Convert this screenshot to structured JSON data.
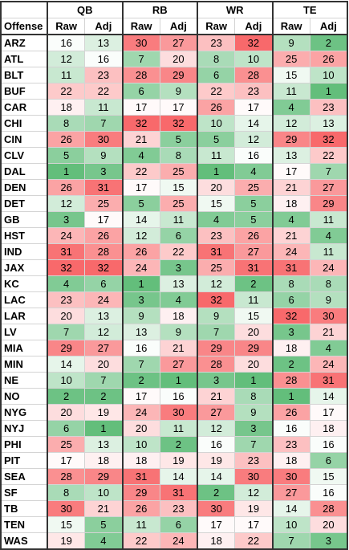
{
  "table": {
    "corner": "Offense",
    "groups": [
      {
        "name": "QB",
        "columns": [
          "Raw",
          "Adj"
        ]
      },
      {
        "name": "RB",
        "columns": [
          "Raw",
          "Adj"
        ]
      },
      {
        "name": "WR",
        "columns": [
          "Raw",
          "Adj"
        ]
      },
      {
        "name": "TE",
        "columns": [
          "Raw",
          "Adj"
        ]
      }
    ],
    "color_scale": {
      "low": "#63be7b",
      "mid": "#ffffff",
      "high": "#f8696b"
    },
    "rows": [
      {
        "team": "ARZ",
        "values": [
          16,
          13,
          30,
          27,
          23,
          32,
          9,
          2
        ]
      },
      {
        "team": "ATL",
        "values": [
          12,
          16,
          7,
          20,
          8,
          10,
          25,
          26
        ]
      },
      {
        "team": "BLT",
        "values": [
          11,
          23,
          28,
          29,
          6,
          28,
          15,
          10
        ]
      },
      {
        "team": "BUF",
        "values": [
          22,
          22,
          6,
          9,
          22,
          23,
          11,
          1
        ]
      },
      {
        "team": "CAR",
        "values": [
          18,
          11,
          17,
          17,
          26,
          17,
          4,
          23
        ]
      },
      {
        "team": "CHI",
        "values": [
          8,
          7,
          32,
          32,
          10,
          14,
          12,
          13
        ]
      },
      {
        "team": "CIN",
        "values": [
          26,
          30,
          21,
          5,
          5,
          12,
          29,
          32
        ]
      },
      {
        "team": "CLV",
        "values": [
          5,
          9,
          4,
          8,
          11,
          16,
          13,
          22
        ]
      },
      {
        "team": "DAL",
        "values": [
          1,
          3,
          22,
          25,
          1,
          4,
          17,
          7
        ]
      },
      {
        "team": "DEN",
        "values": [
          26,
          31,
          17,
          15,
          20,
          25,
          21,
          27
        ]
      },
      {
        "team": "DET",
        "values": [
          12,
          25,
          5,
          25,
          15,
          5,
          18,
          29
        ]
      },
      {
        "team": "GB",
        "values": [
          3,
          17,
          14,
          11,
          4,
          5,
          4,
          11
        ]
      },
      {
        "team": "HST",
        "values": [
          24,
          26,
          12,
          6,
          23,
          26,
          21,
          4
        ]
      },
      {
        "team": "IND",
        "values": [
          31,
          28,
          26,
          22,
          31,
          27,
          24,
          11
        ]
      },
      {
        "team": "JAX",
        "values": [
          32,
          32,
          24,
          3,
          25,
          31,
          31,
          24
        ]
      },
      {
        "team": "KC",
        "values": [
          4,
          6,
          1,
          13,
          12,
          2,
          8,
          8
        ]
      },
      {
        "team": "LAC",
        "values": [
          23,
          24,
          3,
          4,
          32,
          11,
          6,
          9
        ]
      },
      {
        "team": "LAR",
        "values": [
          20,
          13,
          9,
          18,
          9,
          15,
          32,
          30
        ]
      },
      {
        "team": "LV",
        "values": [
          7,
          12,
          13,
          9,
          7,
          20,
          3,
          21
        ]
      },
      {
        "team": "MIA",
        "values": [
          29,
          27,
          16,
          21,
          29,
          29,
          18,
          4
        ]
      },
      {
        "team": "MIN",
        "values": [
          14,
          20,
          7,
          27,
          28,
          20,
          2,
          24
        ]
      },
      {
        "team": "NE",
        "values": [
          10,
          7,
          2,
          1,
          3,
          1,
          28,
          31
        ]
      },
      {
        "team": "NO",
        "values": [
          2,
          2,
          17,
          16,
          21,
          8,
          1,
          14
        ]
      },
      {
        "team": "NYG",
        "values": [
          20,
          19,
          24,
          30,
          27,
          9,
          26,
          17
        ]
      },
      {
        "team": "NYJ",
        "values": [
          6,
          1,
          20,
          11,
          12,
          3,
          16,
          18
        ]
      },
      {
        "team": "PHI",
        "values": [
          25,
          13,
          10,
          2,
          16,
          7,
          23,
          16
        ]
      },
      {
        "team": "PIT",
        "values": [
          17,
          18,
          18,
          19,
          19,
          23,
          18,
          6
        ]
      },
      {
        "team": "SEA",
        "values": [
          28,
          29,
          31,
          14,
          14,
          30,
          30,
          15
        ]
      },
      {
        "team": "SF",
        "values": [
          8,
          10,
          29,
          31,
          2,
          12,
          27,
          16
        ]
      },
      {
        "team": "TB",
        "values": [
          30,
          21,
          26,
          23,
          30,
          19,
          14,
          28
        ]
      },
      {
        "team": "TEN",
        "values": [
          15,
          5,
          11,
          6,
          17,
          17,
          10,
          20
        ]
      },
      {
        "team": "WAS",
        "values": [
          19,
          4,
          22,
          24,
          18,
          22,
          7,
          3
        ]
      }
    ]
  }
}
